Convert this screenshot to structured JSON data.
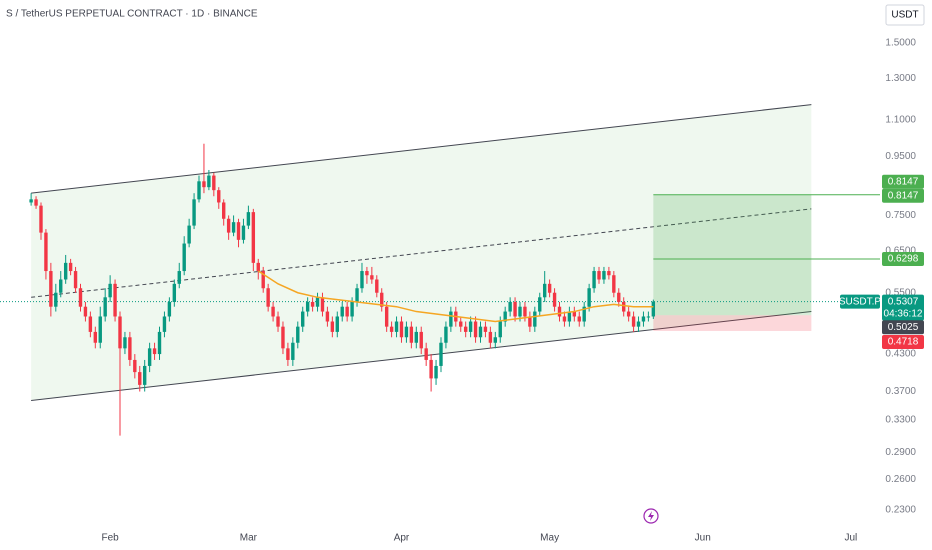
{
  "chart_data": {
    "type": "candlestick",
    "title": "S / TetherUS PERPETUAL CONTRACT · 1D · BINANCE",
    "currency_button": "USDT",
    "log_scale": true,
    "up_color": "#089981",
    "down_color": "#f23645",
    "xlim": [
      -6.3,
      171.9
    ],
    "xticks": [
      {
        "value": 16,
        "label": "Feb"
      },
      {
        "value": 44,
        "label": "Mar"
      },
      {
        "value": 75,
        "label": "Apr"
      },
      {
        "value": 105,
        "label": "May"
      },
      {
        "value": 136,
        "label": "Jun"
      },
      {
        "value": 166,
        "label": "Jul"
      }
    ],
    "ylim": [
      0.214,
      1.78
    ],
    "yticks": [
      {
        "value": 1.5,
        "label": "1.5000"
      },
      {
        "value": 1.3,
        "label": "1.3000"
      },
      {
        "value": 1.1,
        "label": "1.1000"
      },
      {
        "value": 0.95,
        "label": "0.9500"
      },
      {
        "value": 0.85,
        "label": "0.8500"
      },
      {
        "value": 0.75,
        "label": "0.7500"
      },
      {
        "value": 0.65,
        "label": "0.6500"
      },
      {
        "value": 0.55,
        "label": "0.5500"
      },
      {
        "value": 0.43,
        "label": "0.4300"
      },
      {
        "value": 0.37,
        "label": "0.3700"
      },
      {
        "value": 0.33,
        "label": "0.3300"
      },
      {
        "value": 0.29,
        "label": "0.2900"
      },
      {
        "value": 0.26,
        "label": "0.2600"
      },
      {
        "value": 0.23,
        "label": "0.2300"
      }
    ],
    "x": [
      0,
      1,
      2,
      3,
      4,
      5,
      6,
      7,
      8,
      9,
      10,
      11,
      12,
      13,
      14,
      15,
      16,
      17,
      18,
      19,
      20,
      21,
      22,
      23,
      24,
      25,
      26,
      27,
      28,
      29,
      30,
      31,
      32,
      33,
      34,
      35,
      36,
      37,
      38,
      39,
      40,
      41,
      42,
      43,
      44,
      45,
      46,
      47,
      48,
      49,
      50,
      51,
      52,
      53,
      54,
      55,
      56,
      57,
      58,
      59,
      60,
      61,
      62,
      63,
      64,
      65,
      66,
      67,
      68,
      69,
      70,
      71,
      72,
      73,
      74,
      75,
      76,
      77,
      78,
      79,
      80,
      81,
      82,
      83,
      84,
      85,
      86,
      87,
      88,
      89,
      90,
      91,
      92,
      93,
      94,
      95,
      96,
      97,
      98,
      99,
      100,
      101,
      102,
      103,
      104,
      105,
      106,
      107,
      108,
      109,
      110,
      111,
      112,
      113,
      114,
      115,
      116,
      117,
      118,
      119,
      120,
      121,
      122,
      123,
      124,
      125,
      126
    ],
    "candles": [
      [
        0.79,
        0.82,
        0.78,
        0.8
      ],
      [
        0.8,
        0.81,
        0.77,
        0.78
      ],
      [
        0.78,
        0.79,
        0.68,
        0.7
      ],
      [
        0.7,
        0.71,
        0.58,
        0.6
      ],
      [
        0.6,
        0.62,
        0.5,
        0.52
      ],
      [
        0.52,
        0.57,
        0.51,
        0.55
      ],
      [
        0.55,
        0.6,
        0.54,
        0.58
      ],
      [
        0.58,
        0.64,
        0.57,
        0.62
      ],
      [
        0.62,
        0.63,
        0.59,
        0.6
      ],
      [
        0.6,
        0.61,
        0.55,
        0.56
      ],
      [
        0.56,
        0.57,
        0.51,
        0.52
      ],
      [
        0.52,
        0.53,
        0.49,
        0.5
      ],
      [
        0.5,
        0.51,
        0.46,
        0.47
      ],
      [
        0.47,
        0.48,
        0.44,
        0.45
      ],
      [
        0.45,
        0.52,
        0.44,
        0.5
      ],
      [
        0.5,
        0.56,
        0.49,
        0.54
      ],
      [
        0.54,
        0.59,
        0.53,
        0.57
      ],
      [
        0.57,
        0.58,
        0.49,
        0.5
      ],
      [
        0.5,
        0.51,
        0.31,
        0.44
      ],
      [
        0.44,
        0.47,
        0.43,
        0.46
      ],
      [
        0.46,
        0.47,
        0.41,
        0.42
      ],
      [
        0.42,
        0.43,
        0.39,
        0.4
      ],
      [
        0.4,
        0.41,
        0.37,
        0.38
      ],
      [
        0.38,
        0.42,
        0.37,
        0.41
      ],
      [
        0.41,
        0.45,
        0.4,
        0.44
      ],
      [
        0.44,
        0.45,
        0.42,
        0.43
      ],
      [
        0.43,
        0.48,
        0.42,
        0.47
      ],
      [
        0.47,
        0.51,
        0.46,
        0.5
      ],
      [
        0.5,
        0.54,
        0.49,
        0.53
      ],
      [
        0.53,
        0.58,
        0.52,
        0.57
      ],
      [
        0.57,
        0.62,
        0.56,
        0.6
      ],
      [
        0.6,
        0.69,
        0.59,
        0.67
      ],
      [
        0.67,
        0.74,
        0.66,
        0.72
      ],
      [
        0.72,
        0.82,
        0.71,
        0.8
      ],
      [
        0.8,
        0.88,
        0.79,
        0.86
      ],
      [
        0.86,
        1.0,
        0.82,
        0.84
      ],
      [
        0.84,
        0.9,
        0.83,
        0.88
      ],
      [
        0.88,
        0.89,
        0.81,
        0.83
      ],
      [
        0.83,
        0.84,
        0.77,
        0.79
      ],
      [
        0.79,
        0.8,
        0.72,
        0.74
      ],
      [
        0.74,
        0.75,
        0.68,
        0.7
      ],
      [
        0.7,
        0.75,
        0.69,
        0.73
      ],
      [
        0.73,
        0.74,
        0.66,
        0.68
      ],
      [
        0.68,
        0.74,
        0.67,
        0.72
      ],
      [
        0.72,
        0.78,
        0.71,
        0.76
      ],
      [
        0.76,
        0.77,
        0.6,
        0.62
      ],
      [
        0.62,
        0.63,
        0.58,
        0.6
      ],
      [
        0.6,
        0.61,
        0.55,
        0.56
      ],
      [
        0.56,
        0.57,
        0.51,
        0.52
      ],
      [
        0.52,
        0.53,
        0.49,
        0.5
      ],
      [
        0.5,
        0.51,
        0.47,
        0.48
      ],
      [
        0.48,
        0.49,
        0.43,
        0.44
      ],
      [
        0.44,
        0.45,
        0.41,
        0.42
      ],
      [
        0.42,
        0.46,
        0.41,
        0.45
      ],
      [
        0.45,
        0.49,
        0.44,
        0.48
      ],
      [
        0.48,
        0.52,
        0.47,
        0.51
      ],
      [
        0.51,
        0.54,
        0.5,
        0.53
      ],
      [
        0.53,
        0.54,
        0.51,
        0.52
      ],
      [
        0.52,
        0.55,
        0.51,
        0.54
      ],
      [
        0.54,
        0.55,
        0.5,
        0.51
      ],
      [
        0.51,
        0.52,
        0.48,
        0.49
      ],
      [
        0.49,
        0.5,
        0.46,
        0.47
      ],
      [
        0.47,
        0.51,
        0.46,
        0.5
      ],
      [
        0.5,
        0.53,
        0.49,
        0.52
      ],
      [
        0.52,
        0.53,
        0.49,
        0.5
      ],
      [
        0.5,
        0.54,
        0.49,
        0.53
      ],
      [
        0.53,
        0.57,
        0.52,
        0.56
      ],
      [
        0.56,
        0.62,
        0.55,
        0.6
      ],
      [
        0.6,
        0.61,
        0.57,
        0.59
      ],
      [
        0.59,
        0.61,
        0.57,
        0.58
      ],
      [
        0.58,
        0.59,
        0.54,
        0.55
      ],
      [
        0.55,
        0.56,
        0.51,
        0.52
      ],
      [
        0.52,
        0.53,
        0.47,
        0.48
      ],
      [
        0.48,
        0.49,
        0.46,
        0.47
      ],
      [
        0.47,
        0.5,
        0.46,
        0.49
      ],
      [
        0.49,
        0.5,
        0.45,
        0.46
      ],
      [
        0.46,
        0.49,
        0.45,
        0.48
      ],
      [
        0.48,
        0.49,
        0.44,
        0.45
      ],
      [
        0.45,
        0.48,
        0.44,
        0.47
      ],
      [
        0.47,
        0.48,
        0.43,
        0.44
      ],
      [
        0.44,
        0.45,
        0.41,
        0.42
      ],
      [
        0.42,
        0.43,
        0.37,
        0.39
      ],
      [
        0.39,
        0.42,
        0.38,
        0.41
      ],
      [
        0.41,
        0.46,
        0.4,
        0.45
      ],
      [
        0.45,
        0.49,
        0.44,
        0.48
      ],
      [
        0.48,
        0.52,
        0.47,
        0.51
      ],
      [
        0.51,
        0.52,
        0.48,
        0.49
      ],
      [
        0.49,
        0.5,
        0.47,
        0.48
      ],
      [
        0.48,
        0.49,
        0.46,
        0.47
      ],
      [
        0.47,
        0.5,
        0.46,
        0.49
      ],
      [
        0.49,
        0.5,
        0.45,
        0.46
      ],
      [
        0.46,
        0.49,
        0.45,
        0.48
      ],
      [
        0.48,
        0.49,
        0.46,
        0.47
      ],
      [
        0.47,
        0.48,
        0.44,
        0.45
      ],
      [
        0.45,
        0.47,
        0.44,
        0.46
      ],
      [
        0.46,
        0.5,
        0.45,
        0.49
      ],
      [
        0.49,
        0.52,
        0.48,
        0.51
      ],
      [
        0.51,
        0.54,
        0.5,
        0.53
      ],
      [
        0.53,
        0.54,
        0.49,
        0.5
      ],
      [
        0.5,
        0.53,
        0.49,
        0.52
      ],
      [
        0.52,
        0.53,
        0.49,
        0.5
      ],
      [
        0.5,
        0.51,
        0.47,
        0.48
      ],
      [
        0.48,
        0.52,
        0.47,
        0.51
      ],
      [
        0.51,
        0.55,
        0.5,
        0.54
      ],
      [
        0.54,
        0.6,
        0.53,
        0.57
      ],
      [
        0.57,
        0.58,
        0.54,
        0.55
      ],
      [
        0.55,
        0.56,
        0.51,
        0.52
      ],
      [
        0.52,
        0.53,
        0.49,
        0.5
      ],
      [
        0.5,
        0.51,
        0.48,
        0.49
      ],
      [
        0.49,
        0.52,
        0.48,
        0.51
      ],
      [
        0.51,
        0.52,
        0.49,
        0.5
      ],
      [
        0.5,
        0.51,
        0.48,
        0.49
      ],
      [
        0.49,
        0.53,
        0.48,
        0.52
      ],
      [
        0.52,
        0.57,
        0.51,
        0.56
      ],
      [
        0.56,
        0.61,
        0.55,
        0.6
      ],
      [
        0.6,
        0.61,
        0.57,
        0.58
      ],
      [
        0.58,
        0.61,
        0.57,
        0.6
      ],
      [
        0.6,
        0.61,
        0.58,
        0.59
      ],
      [
        0.59,
        0.6,
        0.54,
        0.55
      ],
      [
        0.55,
        0.56,
        0.52,
        0.53
      ],
      [
        0.53,
        0.54,
        0.5,
        0.51
      ],
      [
        0.51,
        0.52,
        0.49,
        0.5
      ],
      [
        0.5,
        0.51,
        0.47,
        0.48
      ],
      [
        0.48,
        0.5,
        0.47,
        0.49
      ],
      [
        0.49,
        0.51,
        0.48,
        0.5
      ],
      [
        0.5,
        0.51,
        0.49,
        0.5
      ],
      [
        0.5,
        0.535,
        0.495,
        0.5307
      ]
    ],
    "moving_average": {
      "color": "#f5a623",
      "x": [
        46,
        50,
        54,
        58,
        62,
        66,
        70,
        74,
        78,
        82,
        86,
        90,
        94,
        98,
        102,
        106,
        110,
        114,
        118,
        122,
        126
      ],
      "values": [
        0.6,
        0.57,
        0.55,
        0.54,
        0.535,
        0.53,
        0.525,
        0.52,
        0.51,
        0.505,
        0.5,
        0.495,
        0.49,
        0.495,
        0.5,
        0.505,
        0.51,
        0.52,
        0.525,
        0.52,
        0.52
      ]
    },
    "channel": {
      "x": [
        0,
        158
      ],
      "upper": [
        0.82,
        1.17
      ],
      "middle": [
        0.54,
        0.77
      ],
      "lower": [
        0.357,
        0.51
      ]
    },
    "position": {
      "x": [
        126,
        158
      ],
      "entry": 0.5025,
      "target": 0.8147,
      "stop": 0.4718,
      "level": 0.6298
    },
    "symbol": "SUSDT.P",
    "last_price": 0.5307,
    "countdown": "04:36:12"
  }
}
